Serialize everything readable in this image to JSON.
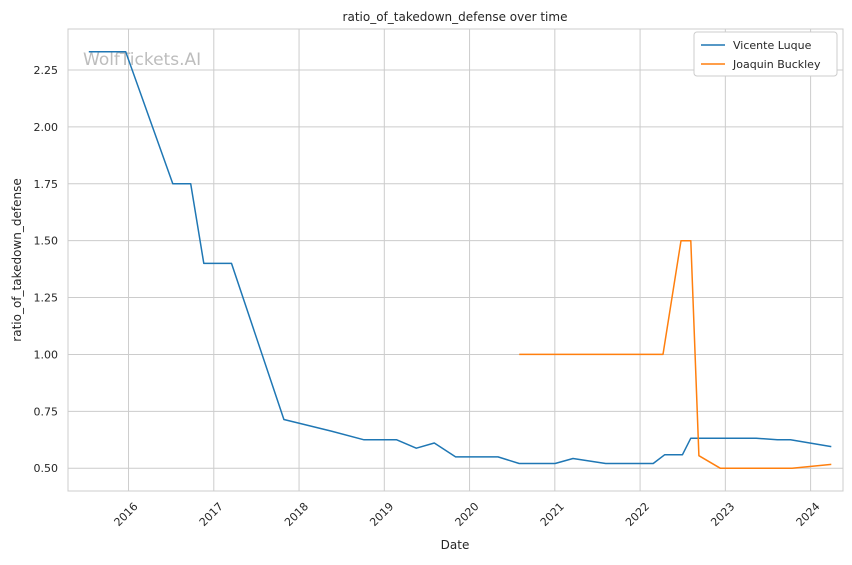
{
  "chart_data": {
    "type": "line",
    "title": "ratio_of_takedown_defense over time",
    "xlabel": "Date",
    "ylabel": "ratio_of_takedown_defense",
    "watermark": "WolfTickets.AI",
    "x_range": [
      "2015-04-15",
      "2024-05-20"
    ],
    "xlim": [
      2015.29,
      2024.38
    ],
    "ylim": [
      0.4,
      2.43
    ],
    "x_ticks": [
      "2016",
      "2017",
      "2018",
      "2019",
      "2020",
      "2021",
      "2022",
      "2023",
      "2024"
    ],
    "y_ticks": [
      "0.50",
      "0.75",
      "1.00",
      "1.25",
      "1.50",
      "1.75",
      "2.00",
      "2.25"
    ],
    "grid": true,
    "legend_position": "top-right",
    "series": [
      {
        "name": "Vicente Luque",
        "color": "#1f77b4",
        "x": [
          "2015-07-15",
          "2015-12-20",
          "2016-07-09",
          "2016-09-24",
          "2016-11-19",
          "2017-03-18",
          "2017-10-28",
          "2018-05-19",
          "2018-10-06",
          "2019-02-23",
          "2019-05-18",
          "2019-08-03",
          "2019-11-02",
          "2020-05-02",
          "2020-08-01",
          "2021-01-02",
          "2021-03-20",
          "2021-08-07",
          "2022-02-26",
          "2022-04-16",
          "2022-07-01",
          "2022-08-06",
          "2023-05-13",
          "2023-08-12",
          "2023-10-07",
          "2024-03-30"
        ],
        "y": [
          2.33,
          2.33,
          1.75,
          1.75,
          1.4,
          1.4,
          0.714,
          0.663,
          0.625,
          0.625,
          0.588,
          0.611,
          0.55,
          0.55,
          0.521,
          0.521,
          0.543,
          0.521,
          0.521,
          0.559,
          0.559,
          0.632,
          0.632,
          0.625,
          0.625,
          0.595
        ]
      },
      {
        "name": "Joaquin Buckley",
        "color": "#ff7f0e",
        "x": [
          "2020-08-01",
          "2022-04-09",
          "2022-06-25",
          "2022-08-06",
          "2022-09-10",
          "2022-12-10",
          "2023-06-03",
          "2023-10-14",
          "2024-03-30"
        ],
        "y": [
          1.0,
          1.0,
          1.5,
          1.5,
          0.555,
          0.5,
          0.5,
          0.5,
          0.517
        ]
      }
    ]
  }
}
